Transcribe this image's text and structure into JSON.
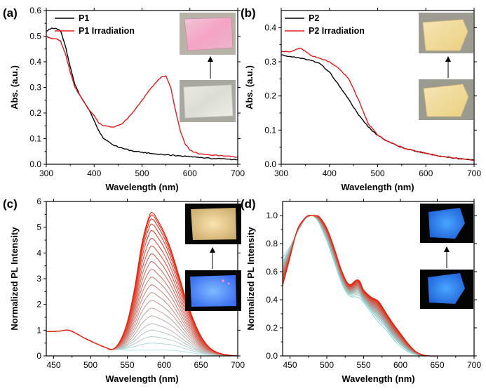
{
  "chart_data": [
    {
      "id": "a",
      "panel_label": "(a)",
      "type": "line",
      "xlabel": "Wavelength (nm)",
      "ylabel": "Abs. (a.u.)",
      "xlim": [
        300,
        700
      ],
      "ylim": [
        0,
        0.6
      ],
      "xticks": [
        300,
        400,
        500,
        600,
        700
      ],
      "yticks": [
        0.0,
        0.1,
        0.2,
        0.3,
        0.4,
        0.5,
        0.6
      ],
      "ytick_labels": [
        "0.0",
        "0.1",
        "0.2",
        "0.3",
        "0.4",
        "0.5",
        "0.6"
      ],
      "legend_position": "top-left",
      "series": [
        {
          "name": "P1",
          "color": "#000000",
          "x": [
            300,
            310,
            320,
            330,
            340,
            350,
            360,
            370,
            380,
            390,
            400,
            410,
            420,
            440,
            460,
            480,
            500,
            520,
            550,
            580,
            600,
            620,
            650,
            680,
            700
          ],
          "y": [
            0.52,
            0.53,
            0.53,
            0.52,
            0.46,
            0.38,
            0.31,
            0.27,
            0.24,
            0.21,
            0.17,
            0.13,
            0.1,
            0.075,
            0.062,
            0.052,
            0.047,
            0.042,
            0.037,
            0.033,
            0.029,
            0.026,
            0.022,
            0.02,
            0.018
          ]
        },
        {
          "name": "P1 Irradiation",
          "color": "#e31a1c",
          "x": [
            300,
            310,
            320,
            330,
            340,
            350,
            360,
            370,
            380,
            390,
            400,
            410,
            420,
            440,
            460,
            480,
            500,
            520,
            540,
            550,
            560,
            570,
            580,
            590,
            600,
            620,
            650,
            680,
            700
          ],
          "y": [
            0.5,
            0.49,
            0.49,
            0.48,
            0.43,
            0.36,
            0.3,
            0.27,
            0.24,
            0.21,
            0.19,
            0.16,
            0.15,
            0.145,
            0.16,
            0.2,
            0.25,
            0.3,
            0.34,
            0.345,
            0.3,
            0.21,
            0.13,
            0.08,
            0.055,
            0.04,
            0.035,
            0.032,
            0.028
          ]
        }
      ],
      "insets": [
        "pink-film-photo",
        "white-film-photo"
      ]
    },
    {
      "id": "b",
      "panel_label": "(b)",
      "type": "line",
      "xlabel": "Wavelength (nm)",
      "ylabel": "Abs. (a.u.)",
      "xlim": [
        300,
        700
      ],
      "ylim": [
        0,
        0.45
      ],
      "xticks": [
        300,
        400,
        500,
        600,
        700
      ],
      "yticks": [
        0.0,
        0.1,
        0.2,
        0.3,
        0.4
      ],
      "ytick_labels": [
        "0.0",
        "0.1",
        "0.2",
        "0.3",
        "0.4"
      ],
      "legend_position": "top-left",
      "series": [
        {
          "name": "P2",
          "color": "#000000",
          "x": [
            300,
            320,
            340,
            360,
            380,
            400,
            420,
            440,
            460,
            480,
            500,
            520,
            540,
            560,
            580,
            600,
            620,
            640,
            660,
            680,
            700
          ],
          "y": [
            0.32,
            0.315,
            0.31,
            0.305,
            0.295,
            0.27,
            0.23,
            0.19,
            0.145,
            0.11,
            0.085,
            0.068,
            0.055,
            0.045,
            0.038,
            0.032,
            0.026,
            0.022,
            0.018,
            0.015,
            0.012
          ]
        },
        {
          "name": "P2 Irradiation",
          "color": "#e31a1c",
          "x": [
            300,
            320,
            340,
            360,
            380,
            400,
            420,
            440,
            460,
            480,
            500,
            520,
            540,
            560,
            580,
            600,
            620,
            640,
            660,
            680,
            700
          ],
          "y": [
            0.33,
            0.33,
            0.34,
            0.32,
            0.31,
            0.3,
            0.28,
            0.25,
            0.19,
            0.12,
            0.085,
            0.068,
            0.055,
            0.045,
            0.038,
            0.032,
            0.026,
            0.022,
            0.018,
            0.015,
            0.012
          ]
        }
      ],
      "insets": [
        "yellow-film-photo-irradiated",
        "yellow-film-photo"
      ]
    },
    {
      "id": "c",
      "panel_label": "(c)",
      "type": "line",
      "xlabel": "Wavelength (nm)",
      "ylabel": "Normalized PL Intensity",
      "xlim": [
        440,
        700
      ],
      "ylim": [
        0,
        6
      ],
      "xticks": [
        450,
        500,
        550,
        600,
        650,
        700
      ],
      "yticks": [
        0,
        1,
        2,
        3,
        4,
        5,
        6
      ],
      "ytick_labels": [
        "0",
        "1",
        "2",
        "3",
        "4",
        "5",
        "6"
      ],
      "x": [
        440,
        450,
        460,
        470,
        480,
        490,
        500,
        510,
        520,
        530,
        540,
        550,
        560,
        570,
        580,
        585,
        590,
        600,
        610,
        620,
        630,
        640,
        650,
        660,
        670,
        680,
        690,
        700
      ],
      "base_profile": [
        0.95,
        0.95,
        0.97,
        1.0,
        0.88,
        0.72,
        0.58,
        0.45,
        0.33,
        0.25,
        0.25,
        0.25,
        0.25,
        0.25,
        0.25,
        0.25,
        0.25,
        0.25,
        0.25,
        0.22,
        0.17,
        0.12,
        0.08,
        0.05,
        0.03,
        0.015,
        0.005,
        0.0
      ],
      "peak_profile": [
        0,
        0,
        0,
        0,
        0,
        0,
        0,
        0,
        0,
        0,
        0.06,
        0.2,
        0.45,
        0.78,
        0.98,
        1.0,
        0.96,
        0.86,
        0.72,
        0.55,
        0.38,
        0.24,
        0.13,
        0.06,
        0.025,
        0.01,
        0.003,
        0.0
      ],
      "series_peaks": [
        0.0,
        0.25,
        0.5,
        0.75,
        1.0,
        1.3,
        1.6,
        1.9,
        2.2,
        2.5,
        2.8,
        3.1,
        3.4,
        3.7,
        4.0,
        4.3,
        4.6,
        4.85,
        5.05,
        5.2,
        5.3
      ],
      "color_start": "#b4e4e6",
      "color_end": "#e8200a",
      "insets": [
        "film-yellow-glow-photo",
        "film-blue-glow-photo"
      ]
    },
    {
      "id": "d",
      "panel_label": "(d)",
      "type": "line",
      "xlabel": "Wavelength (nm)",
      "ylabel": "Normalized PL Intensity",
      "xlim": [
        440,
        700
      ],
      "ylim": [
        0,
        1.1
      ],
      "xticks": [
        450,
        500,
        550,
        600,
        650,
        700
      ],
      "yticks": [
        0.0,
        0.2,
        0.4,
        0.6,
        0.8,
        1.0
      ],
      "ytick_labels": [
        "0.0",
        "0.2",
        "0.4",
        "0.6",
        "0.8",
        "1.0"
      ],
      "x": [
        440,
        450,
        460,
        470,
        475,
        480,
        485,
        490,
        500,
        510,
        520,
        530,
        540,
        545,
        550,
        560,
        570,
        580,
        590,
        600,
        610,
        620,
        630,
        640,
        650,
        700
      ],
      "profile_first": [
        0.7,
        0.78,
        0.88,
        0.97,
        0.99,
        1.0,
        0.98,
        0.94,
        0.82,
        0.67,
        0.52,
        0.43,
        0.42,
        0.41,
        0.38,
        0.31,
        0.24,
        0.19,
        0.12,
        0.07,
        0.03,
        0.01,
        0.0,
        0.0,
        0.0,
        0.0
      ],
      "profile_last": [
        0.5,
        0.7,
        0.9,
        0.98,
        1.0,
        1.0,
        1.0,
        0.99,
        0.91,
        0.77,
        0.61,
        0.51,
        0.54,
        0.53,
        0.47,
        0.42,
        0.39,
        0.31,
        0.23,
        0.16,
        0.09,
        0.035,
        0.008,
        0.0,
        0.0,
        0.0
      ],
      "n_series": 18,
      "color_start": "#8fdada",
      "color_end": "#e8200a",
      "insets": [
        "film-blue-glow-photo-irradiated",
        "film-blue-glow-photo"
      ]
    }
  ]
}
